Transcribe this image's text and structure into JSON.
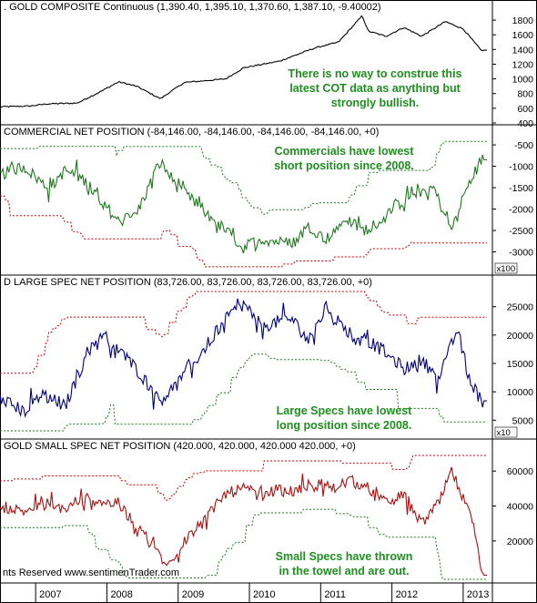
{
  "footer": {
    "copyright": "nts Reserved  www.sentimenTrader.com"
  },
  "x_axis": {
    "year_labels": [
      "2007",
      "2008",
      "2009",
      "2010",
      "2011",
      "2012",
      "2013"
    ]
  },
  "colors": {
    "gold": "#000000",
    "commercial": "#1f7a1f",
    "large": "#000080",
    "small": "#aa1111",
    "band_upper": "#cc0000",
    "band_lower": "#1f7a1f",
    "annotation": "#1f8f1f"
  },
  "chart_data": [
    {
      "type": "line",
      "title": ". GOLD COMPOSITE Continuous (1,390.40, 1,395.10, 1,370.60, 1,387.10, -9.40002)",
      "yticks": [
        "1800",
        "1600",
        "1400",
        "1200",
        "1000",
        "800",
        "600",
        "400"
      ],
      "ylim": [
        400,
        1900
      ],
      "annotation": [
        "There is no way to construe this",
        "latest COT data as anything but",
        "strongly bullish."
      ],
      "series": [
        {
          "x": [
            "2006-07",
            "2006-12",
            "2007-03",
            "2007-08",
            "2007-12",
            "2008-03",
            "2008-06",
            "2008-10",
            "2009-02",
            "2009-09",
            "2009-12",
            "2010-06",
            "2010-12",
            "2011-04",
            "2011-08",
            "2011-09",
            "2011-12",
            "2012-03",
            "2012-06",
            "2012-10",
            "2013-01",
            "2013-04"
          ],
          "values": [
            620,
            630,
            660,
            670,
            830,
            960,
            900,
            730,
            950,
            1000,
            1150,
            1240,
            1420,
            1500,
            1860,
            1650,
            1580,
            1700,
            1580,
            1780,
            1680,
            1390
          ]
        }
      ]
    },
    {
      "type": "line",
      "title": "COMMERCIAL NET POSITION (-84,146.00, -84,146.00, -84,146.00, -84,146.00, +0)",
      "yticks": [
        "-500",
        "-1000",
        "-1500",
        "-2000",
        "-2500",
        "-3000"
      ],
      "ylim": [
        -3500,
        -350
      ],
      "unit_label": "x100",
      "annotation": [
        "Commercials have lowest",
        "short position since 2008."
      ],
      "series": [
        {
          "x": [
            "2006-07",
            "2006-11",
            "2007-03",
            "2007-06",
            "2007-09",
            "2007-12",
            "2008-03",
            "2008-06",
            "2008-08",
            "2008-10",
            "2009-01",
            "2009-05",
            "2009-09",
            "2009-12",
            "2010-03",
            "2010-08",
            "2010-11",
            "2011-02",
            "2011-05",
            "2011-08",
            "2011-11",
            "2012-02",
            "2012-05",
            "2012-08",
            "2012-11",
            "2013-01",
            "2013-04"
          ],
          "values": [
            -1200,
            -1000,
            -1500,
            -1100,
            -1300,
            -1800,
            -2300,
            -2100,
            -1500,
            -900,
            -1500,
            -2000,
            -2500,
            -2900,
            -2700,
            -2800,
            -2400,
            -2700,
            -2200,
            -2500,
            -2300,
            -1900,
            -1600,
            -1500,
            -2500,
            -1700,
            -850
          ]
        }
      ]
    },
    {
      "type": "line",
      "title": "D LARGE SPEC NET POSITION (83,726.00, 83,726.00, 83,726.00, 83,726.00, +0)",
      "yticks": [
        "25000",
        "20000",
        "15000",
        "10000",
        "5000"
      ],
      "ylim": [
        2000,
        28000
      ],
      "unit_label": "x10",
      "annotation": [
        "Large Specs have lowest",
        "long position since 2008."
      ],
      "series": [
        {
          "x": [
            "2006-07",
            "2006-11",
            "2007-02",
            "2007-06",
            "2007-09",
            "2007-12",
            "2008-03",
            "2008-06",
            "2008-10",
            "2009-01",
            "2009-05",
            "2009-09",
            "2009-12",
            "2010-03",
            "2010-08",
            "2010-11",
            "2011-02",
            "2011-05",
            "2011-08",
            "2011-12",
            "2012-03",
            "2012-06",
            "2012-09",
            "2012-12",
            "2013-02",
            "2013-04"
          ],
          "values": [
            9000,
            6500,
            9500,
            7500,
            15000,
            20500,
            17500,
            14000,
            8500,
            11500,
            17000,
            23000,
            25500,
            21500,
            23000,
            19000,
            25000,
            21000,
            19500,
            17000,
            14000,
            15500,
            12500,
            21000,
            12500,
            8400
          ]
        }
      ]
    },
    {
      "type": "line",
      "title": "GOLD SMALL SPEC NET POSITION (420.000, 420.000, 420.000  420.000, +0)",
      "yticks": [
        "60000",
        "40000",
        "20000"
      ],
      "ylim": [
        -3000,
        70000
      ],
      "annotation": [
        "Small Specs have thrown",
        "in the towel and are out."
      ],
      "series": [
        {
          "x": [
            "2006-07",
            "2006-11",
            "2007-03",
            "2007-06",
            "2007-09",
            "2007-12",
            "2008-03",
            "2008-06",
            "2008-09",
            "2008-11",
            "2009-02",
            "2009-05",
            "2009-09",
            "2009-12",
            "2010-03",
            "2010-06",
            "2010-09",
            "2010-12",
            "2011-03",
            "2011-06",
            "2011-09",
            "2011-12",
            "2012-03",
            "2012-06",
            "2012-09",
            "2012-11",
            "2013-01",
            "2013-03",
            "2013-04"
          ],
          "values": [
            40000,
            37000,
            42000,
            38000,
            44000,
            43000,
            40000,
            30000,
            17000,
            5000,
            20000,
            30000,
            47000,
            50000,
            46000,
            50000,
            48000,
            54000,
            50000,
            55000,
            48000,
            42000,
            46000,
            30000,
            42000,
            60000,
            45000,
            25000,
            420
          ]
        }
      ]
    }
  ]
}
